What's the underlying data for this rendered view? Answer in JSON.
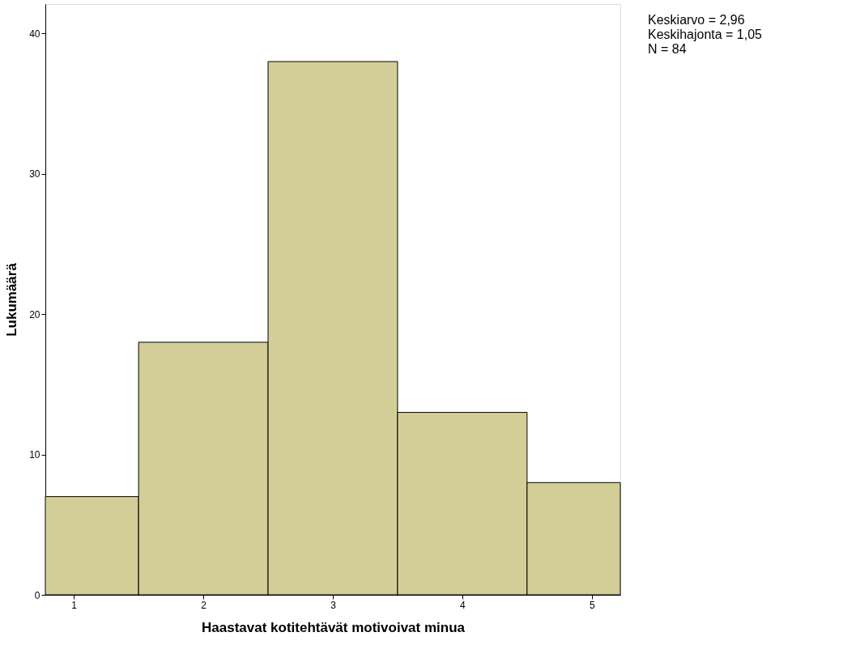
{
  "chart_data": {
    "type": "histogram",
    "xlabel": "Haastavat kotitehtävät motivoivat minua",
    "ylabel": "Lukumäärä",
    "bins": [
      0.78,
      1.5,
      2.5,
      3.5,
      4.5,
      5.22
    ],
    "values": [
      7,
      18,
      38,
      13,
      8
    ],
    "color": "#d3ce97",
    "xlim": [
      0.78,
      5.22
    ],
    "xticks": [
      1,
      2,
      3,
      4,
      5
    ],
    "ylim": [
      0,
      42.1
    ],
    "yticks": [
      0,
      10,
      20,
      30,
      40
    ],
    "grid": false,
    "annotations": [
      "Keskiarvo = 2,96",
      "Keskihajonta = 1,05",
      "N = 84"
    ]
  }
}
